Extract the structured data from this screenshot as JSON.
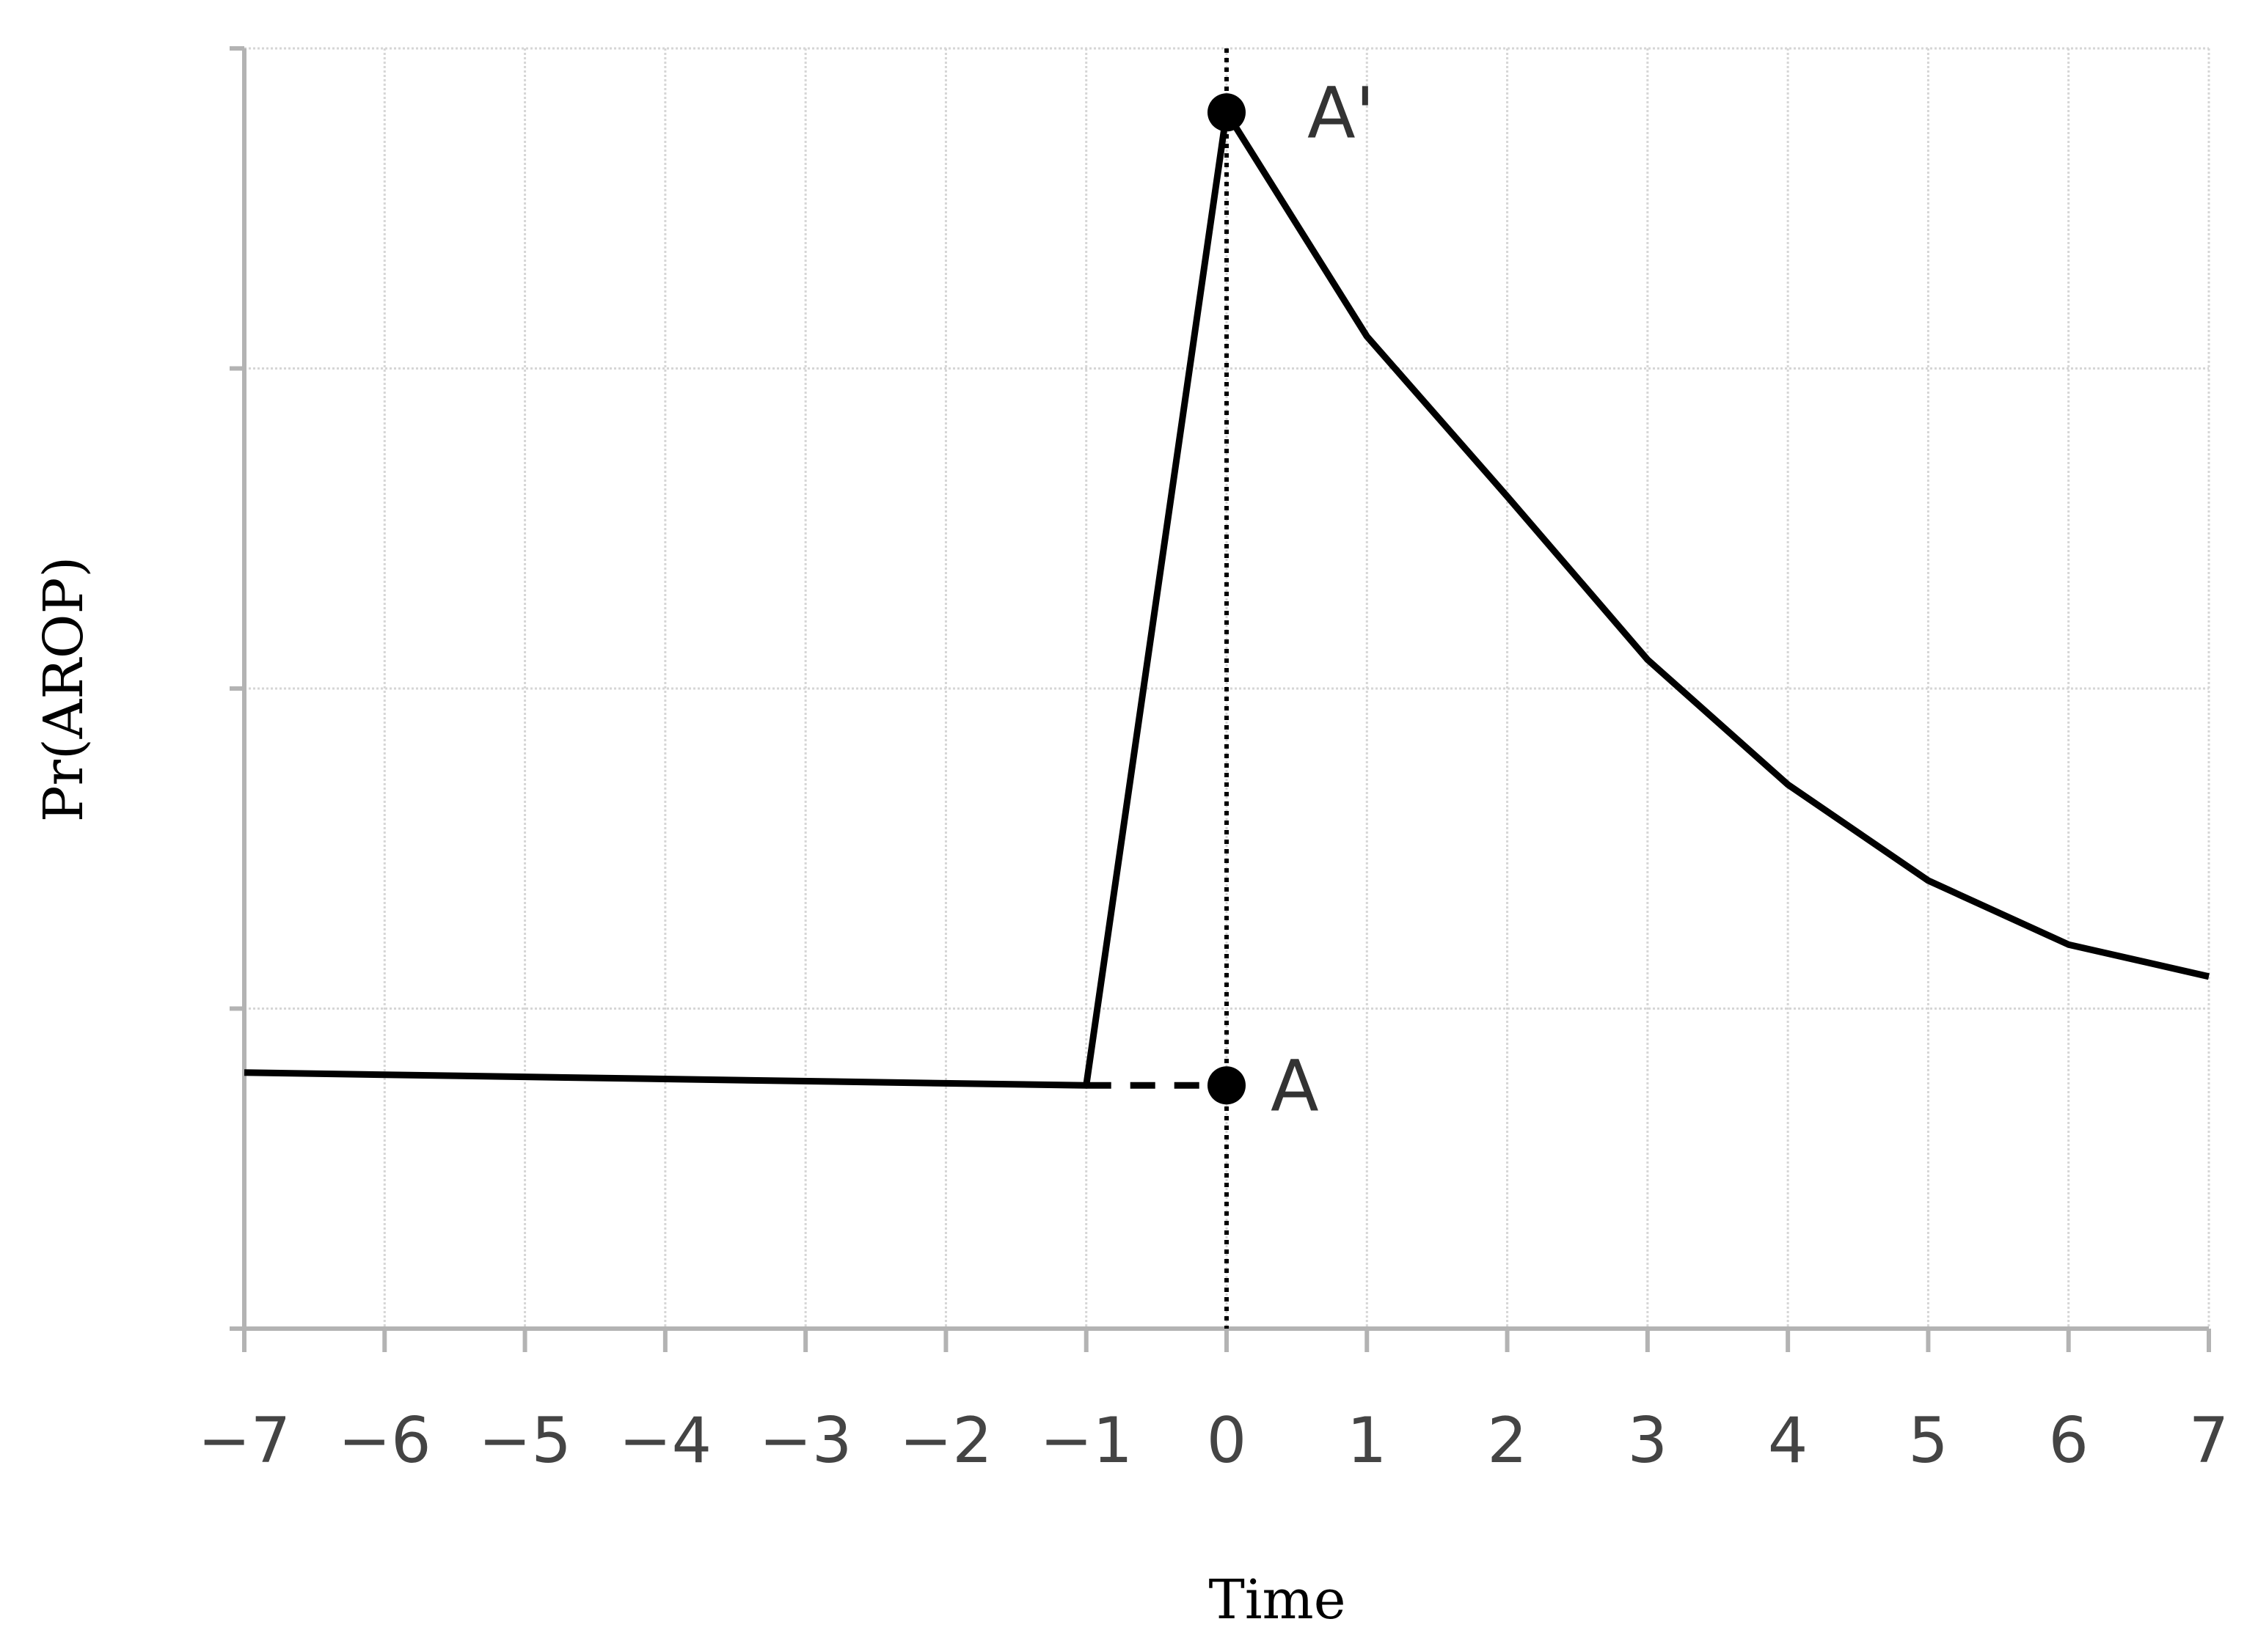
{
  "chart_data": {
    "type": "line",
    "title": "",
    "xlabel": "Time",
    "ylabel": "Pr(AROP)",
    "xlim": [
      -7,
      7
    ],
    "ylim": [
      0,
      4
    ],
    "x_ticks": [
      "-7",
      "-6",
      "-5",
      "-4",
      "-3",
      "-2",
      "-1",
      "0",
      "1",
      "2",
      "3",
      "4",
      "5",
      "6",
      "7"
    ],
    "y_ticks_labeled": false,
    "grid": true,
    "series": [
      {
        "style": "solid",
        "x": [
          -7,
          -1,
          0,
          1,
          2,
          3,
          4,
          5,
          6,
          7
        ],
        "y": [
          0.8,
          0.76,
          3.8,
          3.1,
          2.6,
          2.09,
          1.7,
          1.4,
          1.2,
          1.1
        ]
      },
      {
        "style": "dashed",
        "x": [
          -1,
          0
        ],
        "y": [
          0.76,
          0.76
        ]
      }
    ],
    "reference_lines": [
      {
        "axis": "x",
        "value": 0,
        "style": "dotted"
      }
    ],
    "annotations": [
      {
        "label": "A'",
        "x": 0,
        "y": 3.8
      },
      {
        "label": "A",
        "x": 0,
        "y": 0.76
      }
    ],
    "colors": {
      "line": "#000000",
      "axis": "#b3b3b3",
      "grid": "#d6d6d6",
      "tick_text": "#444444"
    }
  }
}
